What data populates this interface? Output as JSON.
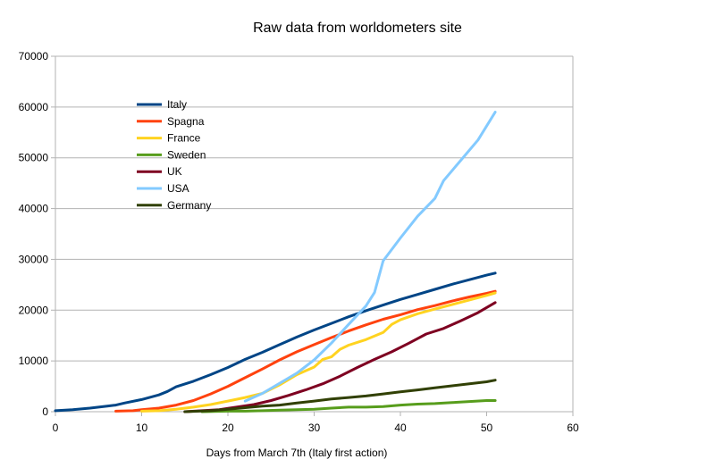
{
  "chart_data": {
    "type": "line",
    "title": "Raw data from worldometers site",
    "xlabel": "Days from March 7th (Italy first action)",
    "ylabel": "",
    "xlim": [
      0,
      60
    ],
    "ylim": [
      0,
      70000
    ],
    "xticks": [
      0,
      10,
      20,
      30,
      40,
      50,
      60
    ],
    "yticks": [
      0,
      10000,
      20000,
      30000,
      40000,
      50000,
      60000,
      70000
    ],
    "grid": "horizontal",
    "legend_position": "inside-top-left",
    "series": [
      {
        "name": "Italy",
        "color": "#004586",
        "points": [
          [
            0,
            200
          ],
          [
            2,
            400
          ],
          [
            4,
            700
          ],
          [
            6,
            1100
          ],
          [
            7,
            1300
          ],
          [
            8,
            1700
          ],
          [
            10,
            2400
          ],
          [
            12,
            3300
          ],
          [
            13,
            4000
          ],
          [
            14,
            4900
          ],
          [
            16,
            6000
          ],
          [
            18,
            7300
          ],
          [
            20,
            8700
          ],
          [
            22,
            10300
          ],
          [
            24,
            11700
          ],
          [
            26,
            13200
          ],
          [
            28,
            14700
          ],
          [
            30,
            16100
          ],
          [
            32,
            17400
          ],
          [
            34,
            18700
          ],
          [
            36,
            19900
          ],
          [
            38,
            21000
          ],
          [
            40,
            22100
          ],
          [
            42,
            23100
          ],
          [
            44,
            24100
          ],
          [
            46,
            25100
          ],
          [
            48,
            26000
          ],
          [
            50,
            26900
          ],
          [
            51,
            27300
          ]
        ]
      },
      {
        "name": "Spagna",
        "color": "#ff420e",
        "points": [
          [
            7,
            100
          ],
          [
            9,
            200
          ],
          [
            10,
            400
          ],
          [
            12,
            700
          ],
          [
            14,
            1300
          ],
          [
            16,
            2200
          ],
          [
            18,
            3500
          ],
          [
            20,
            5000
          ],
          [
            22,
            6700
          ],
          [
            24,
            8400
          ],
          [
            26,
            10200
          ],
          [
            28,
            11800
          ],
          [
            30,
            13200
          ],
          [
            32,
            14600
          ],
          [
            34,
            15900
          ],
          [
            36,
            17100
          ],
          [
            38,
            18200
          ],
          [
            40,
            19100
          ],
          [
            42,
            20100
          ],
          [
            44,
            20900
          ],
          [
            46,
            21800
          ],
          [
            48,
            22600
          ],
          [
            50,
            23300
          ],
          [
            51,
            23700
          ]
        ]
      },
      {
        "name": "France",
        "color": "#ffd320",
        "points": [
          [
            10,
            100
          ],
          [
            12,
            200
          ],
          [
            14,
            500
          ],
          [
            16,
            900
          ],
          [
            18,
            1400
          ],
          [
            20,
            2100
          ],
          [
            22,
            2800
          ],
          [
            24,
            3600
          ],
          [
            26,
            5300
          ],
          [
            28,
            7300
          ],
          [
            30,
            8800
          ],
          [
            31,
            10300
          ],
          [
            32,
            10800
          ],
          [
            33,
            12300
          ],
          [
            34,
            13100
          ],
          [
            36,
            14200
          ],
          [
            38,
            15600
          ],
          [
            39,
            17200
          ],
          [
            40,
            18100
          ],
          [
            42,
            19300
          ],
          [
            44,
            20200
          ],
          [
            46,
            21100
          ],
          [
            48,
            22000
          ],
          [
            50,
            22900
          ],
          [
            51,
            23400
          ]
        ]
      },
      {
        "name": "Sweden",
        "color": "#579d1c",
        "points": [
          [
            17,
            0
          ],
          [
            20,
            100
          ],
          [
            22,
            100
          ],
          [
            24,
            200
          ],
          [
            26,
            300
          ],
          [
            28,
            400
          ],
          [
            30,
            500
          ],
          [
            32,
            700
          ],
          [
            34,
            900
          ],
          [
            36,
            900
          ],
          [
            38,
            1000
          ],
          [
            40,
            1300
          ],
          [
            42,
            1500
          ],
          [
            44,
            1600
          ],
          [
            46,
            1800
          ],
          [
            48,
            2000
          ],
          [
            50,
            2200
          ],
          [
            51,
            2200
          ]
        ]
      },
      {
        "name": "UK",
        "color": "#7e0021",
        "points": [
          [
            15,
            0
          ],
          [
            17,
            200
          ],
          [
            19,
            400
          ],
          [
            21,
            900
          ],
          [
            23,
            1400
          ],
          [
            25,
            2200
          ],
          [
            27,
            3200
          ],
          [
            29,
            4300
          ],
          [
            31,
            5500
          ],
          [
            33,
            7000
          ],
          [
            35,
            8700
          ],
          [
            37,
            10300
          ],
          [
            39,
            11800
          ],
          [
            41,
            13500
          ],
          [
            43,
            15300
          ],
          [
            45,
            16400
          ],
          [
            47,
            17900
          ],
          [
            49,
            19500
          ],
          [
            51,
            21500
          ]
        ]
      },
      {
        "name": "USA",
        "color": "#83caff",
        "points": [
          [
            22,
            2100
          ],
          [
            24,
            3600
          ],
          [
            26,
            5600
          ],
          [
            28,
            7600
          ],
          [
            30,
            10200
          ],
          [
            32,
            13500
          ],
          [
            34,
            17200
          ],
          [
            36,
            20800
          ],
          [
            37,
            23500
          ],
          [
            38,
            29700
          ],
          [
            40,
            34200
          ],
          [
            42,
            38500
          ],
          [
            44,
            42000
          ],
          [
            45,
            45500
          ],
          [
            47,
            49500
          ],
          [
            49,
            53500
          ],
          [
            51,
            59000
          ]
        ]
      },
      {
        "name": "Germany",
        "color": "#314004",
        "points": [
          [
            15,
            0
          ],
          [
            18,
            200
          ],
          [
            20,
            500
          ],
          [
            22,
            800
          ],
          [
            24,
            1100
          ],
          [
            26,
            1300
          ],
          [
            28,
            1700
          ],
          [
            30,
            2100
          ],
          [
            32,
            2500
          ],
          [
            34,
            2800
          ],
          [
            36,
            3100
          ],
          [
            38,
            3500
          ],
          [
            40,
            3900
          ],
          [
            42,
            4300
          ],
          [
            44,
            4700
          ],
          [
            46,
            5100
          ],
          [
            48,
            5500
          ],
          [
            50,
            5900
          ],
          [
            51,
            6200
          ]
        ]
      }
    ]
  }
}
